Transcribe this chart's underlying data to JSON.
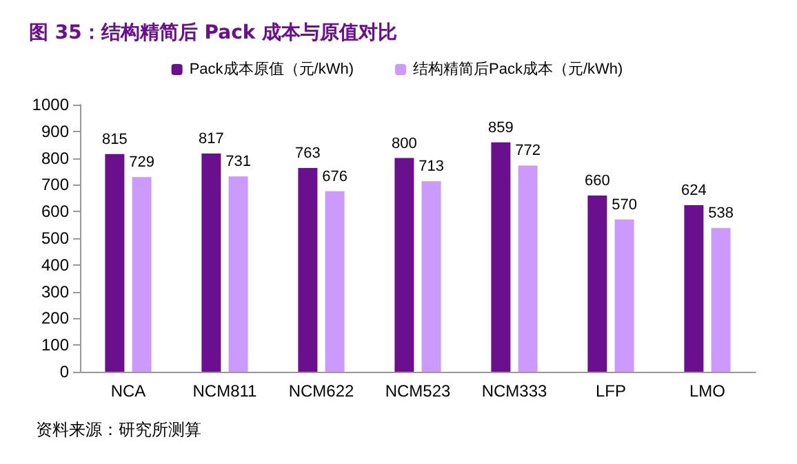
{
  "chart_data": {
    "type": "bar",
    "title": "图 35：结构精简后 Pack 成本与原值对比",
    "categories": [
      "NCA",
      "NCM811",
      "NCM622",
      "NCM523",
      "NCM333",
      "LFP",
      "LMO"
    ],
    "series": [
      {
        "name": "Pack成本原值（元/kWh)",
        "color": "#6a0f8e",
        "values": [
          815,
          817,
          763,
          800,
          859,
          660,
          624
        ]
      },
      {
        "name": "结构精简后Pack成本（元/kWh)",
        "color": "#cc99ff",
        "values": [
          729,
          731,
          676,
          713,
          772,
          570,
          538
        ]
      }
    ],
    "ylim": [
      0,
      1000
    ],
    "yticks": [
      0,
      100,
      200,
      300,
      400,
      500,
      600,
      700,
      800,
      900,
      1000
    ],
    "data_labels": true,
    "grid": false,
    "legend": "top",
    "annotations": [
      "资料来源：研究所测算"
    ]
  }
}
